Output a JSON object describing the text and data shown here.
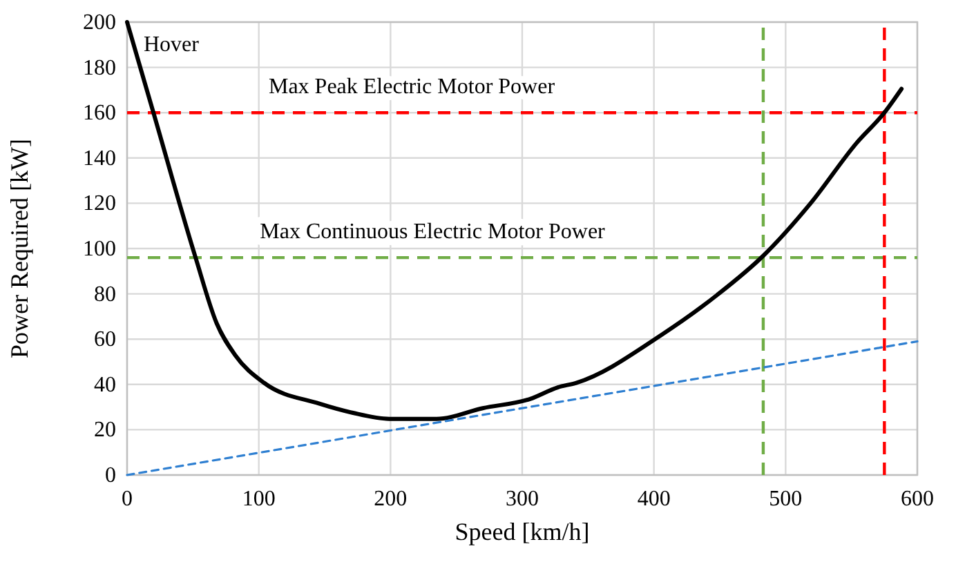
{
  "chart_data": {
    "type": "line",
    "xlabel": "Speed [km/h]",
    "ylabel": "Power Required [kW]",
    "xlim": [
      0,
      600
    ],
    "ylim": [
      0,
      200
    ],
    "xticks": [
      0,
      100,
      200,
      300,
      400,
      500,
      600
    ],
    "yticks": [
      0,
      20,
      40,
      60,
      80,
      100,
      120,
      140,
      160,
      180,
      200
    ],
    "grid": true,
    "series": [
      {
        "color": "#000000",
        "line_style": "solid",
        "x": [
          0,
          20,
          52,
          68,
          82,
          104,
          146,
          171,
          199,
          235,
          270,
          306,
          327,
          341,
          406,
          448,
          483,
          519,
          554,
          575,
          588
        ],
        "values": [
          200,
          160,
          96,
          67,
          53,
          40.7,
          31.5,
          27.5,
          24.8,
          24.8,
          29.5,
          33.6,
          38.7,
          40.7,
          62,
          79.5,
          96.8,
          120,
          146.7,
          160,
          170.5
        ]
      },
      {
        "color": "#2e7fd1",
        "line_style": "dashed",
        "x": [
          0,
          600
        ],
        "values": [
          0,
          59
        ]
      }
    ],
    "ref_lines": [
      {
        "axis": "y",
        "value": 160,
        "label": "Max Peak Electric Motor Power",
        "color": "#ff0000",
        "line_style": "dashed"
      },
      {
        "axis": "y",
        "value": 96,
        "label": "Max Continuous Electric Motor Power",
        "color": "#70ad47",
        "line_style": "dashed"
      },
      {
        "axis": "x",
        "value": 483,
        "color": "#70ad47",
        "line_style": "dashed"
      },
      {
        "axis": "x",
        "value": 575,
        "color": "#ff0000",
        "line_style": "dashed"
      }
    ],
    "annotations": [
      {
        "text": "Hover",
        "x": 0,
        "y": 200
      }
    ]
  }
}
